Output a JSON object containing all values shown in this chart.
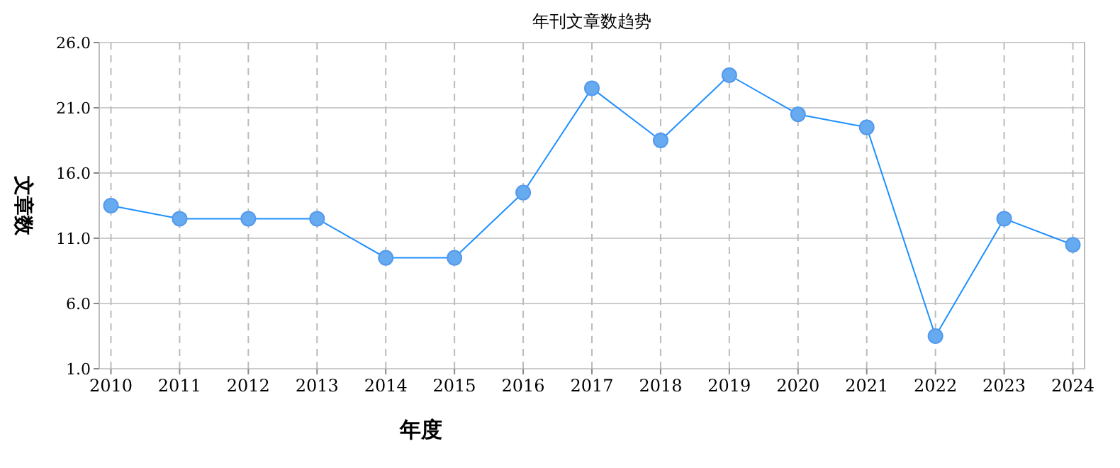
{
  "chart_data": {
    "type": "line",
    "title": "年刊文章数趋势",
    "xlabel": "年度",
    "ylabel": "文章数",
    "categories": [
      "2010",
      "2011",
      "2012",
      "2013",
      "2014",
      "2015",
      "2016",
      "2017",
      "2018",
      "2019",
      "2020",
      "2021",
      "2022",
      "2023",
      "2024"
    ],
    "series": [
      {
        "color": "#1e90ff",
        "values": [
          13.5,
          12.5,
          12.5,
          12.5,
          9.5,
          9.5,
          14.5,
          22.5,
          18.5,
          23.5,
          20.5,
          19.5,
          3.5,
          12.5,
          10.5
        ]
      }
    ],
    "ylim": [
      1,
      26
    ],
    "yticks": [
      {
        "value": 1,
        "label": "1.0"
      },
      {
        "value": 6,
        "label": "6.0"
      },
      {
        "value": 11,
        "label": "11.0"
      },
      {
        "value": 16,
        "label": "16.0"
      },
      {
        "value": 21,
        "label": "21.0"
      },
      {
        "value": 26,
        "label": "26.0"
      }
    ],
    "grid": true,
    "marker": "circle",
    "line_style": "solid"
  }
}
